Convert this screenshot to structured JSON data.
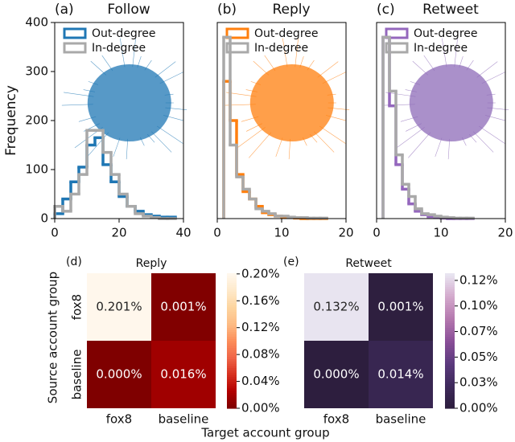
{
  "chart_data": [
    {
      "type": "histogram",
      "label": "(a)",
      "title": "Follow",
      "ylabel": "Frequency",
      "bins": [
        0,
        2.5,
        5,
        7.5,
        10,
        12.5,
        15,
        17.5,
        20,
        22.5,
        25,
        27.5,
        30,
        32.5,
        35,
        37.5
      ],
      "series": [
        {
          "name": "Out-degree",
          "color": "#1f77b4",
          "values": [
            10,
            40,
            75,
            105,
            150,
            165,
            110,
            75,
            45,
            25,
            15,
            8,
            5,
            3,
            3
          ]
        },
        {
          "name": "In-degree",
          "color": "#a9a9a9",
          "values": [
            25,
            15,
            50,
            90,
            180,
            180,
            135,
            90,
            50,
            25,
            10,
            5,
            2,
            0,
            0
          ]
        }
      ],
      "xlim": [
        0,
        40
      ],
      "xticks": [
        0,
        20,
        40
      ],
      "ylim": [
        0,
        400
      ],
      "yticks": [
        0,
        100,
        200,
        300,
        400
      ],
      "legend": "upper left",
      "network_color": "#1f77b4"
    },
    {
      "type": "histogram",
      "label": "(b)",
      "title": "Reply",
      "bins": [
        1,
        2,
        3,
        4,
        5,
        6,
        7,
        8,
        9,
        10,
        11,
        12,
        13,
        14,
        15,
        16,
        17
      ],
      "series": [
        {
          "name": "Out-degree",
          "color": "#ff7f0e",
          "values": [
            280,
            200,
            90,
            55,
            40,
            25,
            12,
            8,
            5,
            3,
            2,
            1,
            0,
            0,
            0,
            0
          ]
        },
        {
          "name": "In-degree",
          "color": "#a9a9a9",
          "values": [
            370,
            150,
            85,
            60,
            40,
            20,
            15,
            10,
            5,
            5,
            3,
            2,
            2,
            1,
            1,
            1
          ]
        }
      ],
      "xlim": [
        0,
        20
      ],
      "xticks": [
        0,
        10,
        20
      ],
      "ylim": [
        0,
        400
      ],
      "legend": "upper left",
      "network_color": "#ff7f0e"
    },
    {
      "type": "histogram",
      "label": "(c)",
      "title": "Retweet",
      "bins": [
        1,
        2,
        3,
        4,
        5,
        6,
        7,
        8,
        9,
        10,
        11,
        12,
        13,
        14,
        15
      ],
      "series": [
        {
          "name": "Out-degree",
          "color": "#9467bd",
          "values": [
            370,
            230,
            110,
            60,
            30,
            15,
            8,
            4,
            2,
            1,
            0,
            0,
            0,
            0
          ]
        },
        {
          "name": "In-degree",
          "color": "#a9a9a9",
          "values": [
            370,
            260,
            130,
            70,
            45,
            20,
            10,
            8,
            5,
            3,
            2,
            1,
            1,
            1
          ]
        }
      ],
      "xlim": [
        0,
        20
      ],
      "xticks": [
        0,
        10,
        20
      ],
      "ylim": [
        0,
        400
      ],
      "legend": "upper left",
      "network_color": "#8e6bb8"
    },
    {
      "type": "heatmap",
      "label": "(d)",
      "title": "Reply",
      "xlabel": "Target account group",
      "ylabel": "Source account group",
      "x_categories": [
        "fox8",
        "baseline"
      ],
      "y_categories": [
        "fox8",
        "baseline"
      ],
      "values": [
        [
          0.201,
          0.001
        ],
        [
          0.0,
          0.016
        ]
      ],
      "value_labels": [
        [
          "0.201%",
          "0.001%"
        ],
        [
          "0.000%",
          "0.016%"
        ]
      ],
      "clim": [
        0,
        0.201
      ],
      "cticks": [
        {
          "value": 0,
          "label": "0.00%"
        },
        {
          "value": 0.04,
          "label": "0.04%"
        },
        {
          "value": 0.08,
          "label": "0.08%"
        },
        {
          "value": 0.12,
          "label": "0.12%"
        },
        {
          "value": 0.16,
          "label": "0.16%"
        },
        {
          "value": 0.2,
          "label": "0.20%"
        }
      ],
      "colormap": [
        "#7f0000",
        "#b30000",
        "#d7301f",
        "#ef6548",
        "#fc8d59",
        "#fdbb84",
        "#fdd49e",
        "#fee8c8",
        "#fff7ec"
      ]
    },
    {
      "type": "heatmap",
      "label": "(e)",
      "title": "Retweet",
      "x_categories": [
        "fox8",
        "baseline"
      ],
      "values": [
        [
          0.132,
          0.001
        ],
        [
          0.0,
          0.014
        ]
      ],
      "value_labels": [
        [
          "0.132%",
          "0.001%"
        ],
        [
          "0.000%",
          "0.014%"
        ]
      ],
      "clim": [
        0,
        0.132
      ],
      "cticks": [
        {
          "value": 0,
          "label": "0.00%"
        },
        {
          "value": 0.025,
          "label": "0.03%"
        },
        {
          "value": 0.05,
          "label": "0.05%"
        },
        {
          "value": 0.075,
          "label": "0.07%"
        },
        {
          "value": 0.1,
          "label": "0.10%"
        },
        {
          "value": 0.125,
          "label": "0.12%"
        }
      ],
      "colormap": [
        "#2d1e3e",
        "#3f2a5c",
        "#5c3a7e",
        "#8a4f98",
        "#b478ae",
        "#d3a9cc",
        "#e8e4f0"
      ]
    }
  ]
}
